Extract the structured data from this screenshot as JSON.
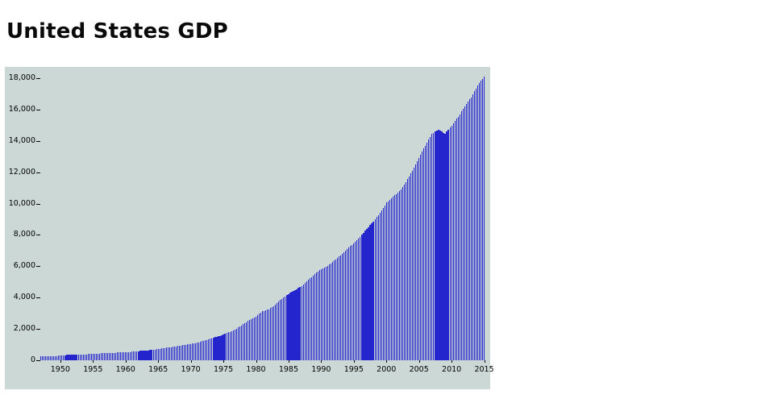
{
  "page": {
    "title": "United States GDP"
  },
  "chart": {
    "background": "#ccd8d6",
    "bar_color": "#2525cd",
    "axis_text_color": "#000000"
  },
  "chart_data": {
    "type": "bar",
    "title": "United States GDP",
    "x_resolution": "quarterly bars, annual anchor values listed",
    "years": [
      1947,
      1948,
      1949,
      1950,
      1951,
      1952,
      1953,
      1954,
      1955,
      1956,
      1957,
      1958,
      1959,
      1960,
      1961,
      1962,
      1963,
      1964,
      1965,
      1966,
      1967,
      1968,
      1969,
      1970,
      1971,
      1972,
      1973,
      1974,
      1975,
      1976,
      1977,
      1978,
      1979,
      1980,
      1981,
      1982,
      1983,
      1984,
      1985,
      1986,
      1987,
      1988,
      1989,
      1990,
      1991,
      1992,
      1993,
      1994,
      1995,
      1996,
      1997,
      1998,
      1999,
      2000,
      2001,
      2002,
      2003,
      2004,
      2005,
      2006,
      2007,
      2008,
      2009,
      2010,
      2011,
      2012,
      2013,
      2014,
      2015
    ],
    "values": [
      243,
      269,
      267,
      294,
      339,
      358,
      379,
      380,
      414,
      437,
      461,
      467,
      507,
      526,
      545,
      586,
      618,
      664,
      720,
      789,
      834,
      912,
      985,
      1039,
      1127,
      1238,
      1382,
      1500,
      1638,
      1825,
      2030,
      2294,
      2563,
      2790,
      3128,
      3255,
      3537,
      3933,
      4240,
      4480,
      4757,
      5127,
      5510,
      5835,
      6022,
      6371,
      6705,
      7118,
      7458,
      7893,
      8393,
      8862,
      9413,
      10061,
      10444,
      10784,
      11361,
      12105,
      12935,
      13694,
      14452,
      14713,
      14449,
      14992,
      15543,
      16197,
      16785,
      17522,
      18120
    ],
    "xlabel": "",
    "ylabel": "",
    "ylim": [
      0,
      18000
    ],
    "y_ticks": [
      0,
      2000,
      4000,
      6000,
      8000,
      10000,
      12000,
      14000,
      16000,
      18000
    ],
    "y_tick_labels": [
      "0",
      "2,000",
      "4,000",
      "6,000",
      "8,000",
      "10,000",
      "12,000",
      "14,000",
      "16,000",
      "18,000"
    ],
    "x_tick_labels": [
      "1950",
      "1955",
      "1960",
      "1965",
      "1970",
      "1975",
      "1980",
      "1985",
      "1990",
      "1995",
      "2000",
      "2005",
      "2010",
      "2015"
    ],
    "grid": false,
    "legend": "none"
  }
}
